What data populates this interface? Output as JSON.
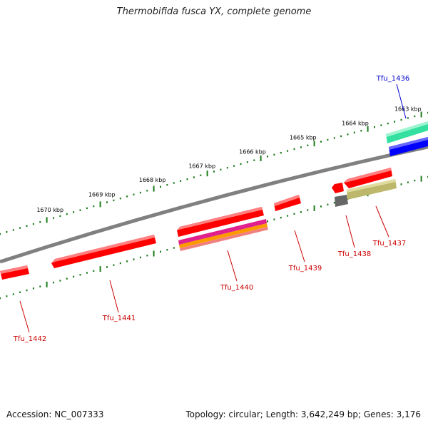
{
  "title": "Thermobifida fusca YX, complete genome",
  "footer": {
    "accession": "Accession: NC_007333",
    "topology": "Topology: circular; Length: 3,642,249 bp; Genes: 3,176"
  },
  "colors": {
    "backbone": "#808080",
    "tick": "#1a7a1a",
    "tick_label": "#000000",
    "gene_label_red": "#cc0000",
    "gene_label_blue": "#0000cc",
    "gene_red": "#ff0000",
    "gene_green": "#33e0a0",
    "gene_blue": "#0000ff",
    "gene_olive": "#bdb76b",
    "gene_gray": "#666666",
    "gene_magenta": "#e0208c",
    "gene_orange": "#ff9900"
  },
  "ruler": {
    "unit": "kbp",
    "labels": [
      "1663 kbp",
      "1664 kbp",
      "1665 kbp",
      "1666 kbp",
      "1667 kbp",
      "1668 kbp",
      "1669 kbp",
      "1670 kbp"
    ]
  },
  "genes": [
    {
      "name": "Tfu_1436",
      "color": "blue"
    },
    {
      "name": "Tfu_1437",
      "color": "red"
    },
    {
      "name": "Tfu_1438",
      "color": "red"
    },
    {
      "name": "Tfu_1439",
      "color": "red"
    },
    {
      "name": "Tfu_1440",
      "color": "red"
    },
    {
      "name": "Tfu_1441",
      "color": "red"
    },
    {
      "name": "Tfu_1442",
      "color": "red"
    }
  ]
}
